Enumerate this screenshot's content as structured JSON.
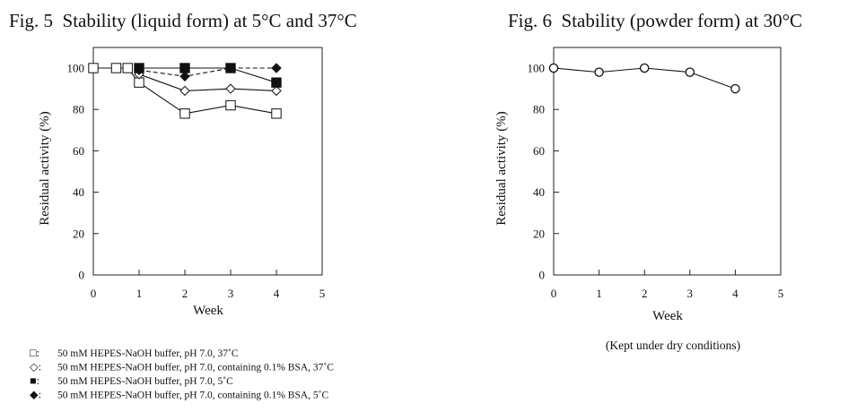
{
  "chart_data": [
    {
      "type": "line",
      "title": "Fig. 5  Stability (liquid form) at 5°C and 37°C",
      "xlabel": "Week",
      "ylabel": "Residual activity (%)",
      "xlim": [
        0,
        5
      ],
      "ylim": [
        0,
        100
      ],
      "x_ticks": [
        "0",
        "1",
        "2",
        "3",
        "4",
        "5"
      ],
      "y_ticks": [
        "0",
        "20",
        "40",
        "60",
        "80",
        "100"
      ],
      "grid": false,
      "legend_position": "below",
      "series": [
        {
          "name": "50 mM HEPES-NaOH buffer, pH 7.0, 37˚C",
          "legend_symbol": "□:",
          "marker": "square-open",
          "line_style": "solid",
          "x": [
            0,
            0.5,
            0.75,
            1,
            2,
            3,
            4
          ],
          "y": [
            100,
            100,
            100,
            93,
            78,
            82,
            78
          ]
        },
        {
          "name": "50 mM HEPES-NaOH buffer, pH 7.0, containing 0.1% BSA, 37˚C",
          "legend_symbol": "◇:",
          "marker": "diamond-open",
          "line_style": "solid",
          "x": [
            1,
            2,
            3,
            4
          ],
          "y": [
            97,
            89,
            90,
            89
          ]
        },
        {
          "name": "50 mM HEPES-NaOH buffer, pH 7.0, 5˚C",
          "legend_symbol": "■:",
          "marker": "square-filled",
          "line_style": "solid",
          "x": [
            1,
            2,
            3,
            4
          ],
          "y": [
            100,
            100,
            100,
            93
          ]
        },
        {
          "name": "50 mM HEPES-NaOH buffer, pH 7.0, containing 0.1% BSA, 5˚C",
          "legend_symbol": "◆:",
          "marker": "diamond-filled",
          "line_style": "dashed",
          "x": [
            1,
            2,
            3,
            4
          ],
          "y": [
            99,
            96,
            100,
            100
          ]
        }
      ]
    },
    {
      "type": "line",
      "title": "Fig. 6  Stability (powder form) at 30°C",
      "xlabel": "Week",
      "ylabel": "Residual activity (%)",
      "note": "(Kept under dry conditions)",
      "xlim": [
        0,
        5
      ],
      "ylim": [
        0,
        100
      ],
      "x_ticks": [
        "0",
        "1",
        "2",
        "3",
        "4",
        "5"
      ],
      "y_ticks": [
        "0",
        "20",
        "40",
        "60",
        "80",
        "100"
      ],
      "grid": false,
      "series": [
        {
          "marker": "circle-open",
          "line_style": "solid",
          "x": [
            0,
            1,
            2,
            3,
            4
          ],
          "y": [
            100,
            98,
            100,
            98,
            90
          ]
        }
      ]
    }
  ]
}
